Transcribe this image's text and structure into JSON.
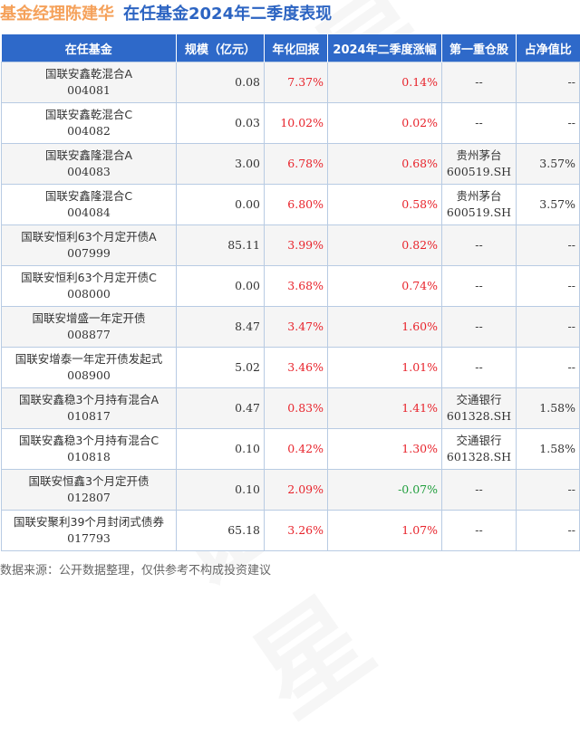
{
  "title": {
    "part1": "基金经理陈建华",
    "part2": "在任基金2024年二季度表现"
  },
  "colors": {
    "title_orange": "#f5a15a",
    "title_blue": "#2c64c2",
    "header_bg": "#2e69c9",
    "positive": "#e8242c",
    "negative": "#1f9e3c"
  },
  "table": {
    "headers": [
      "在任基金",
      "规模（亿元）",
      "年化回报",
      "2024年二季度涨幅",
      "第一重仓股",
      "占净值比"
    ],
    "rows": [
      {
        "name": "国联安鑫乾混合A",
        "code": "004081",
        "size": "0.08",
        "annual_return": "7.37%",
        "q2_change": "0.14%",
        "q2_sign": "red",
        "top_stock": "--",
        "top_stock_code": "",
        "ratio": "--"
      },
      {
        "name": "国联安鑫乾混合C",
        "code": "004082",
        "size": "0.03",
        "annual_return": "10.02%",
        "q2_change": "0.02%",
        "q2_sign": "red",
        "top_stock": "--",
        "top_stock_code": "",
        "ratio": "--"
      },
      {
        "name": "国联安鑫隆混合A",
        "code": "004083",
        "size": "3.00",
        "annual_return": "6.78%",
        "q2_change": "0.68%",
        "q2_sign": "red",
        "top_stock": "贵州茅台",
        "top_stock_code": "600519.SH",
        "ratio": "3.57%"
      },
      {
        "name": "国联安鑫隆混合C",
        "code": "004084",
        "size": "0.00",
        "annual_return": "6.80%",
        "q2_change": "0.58%",
        "q2_sign": "red",
        "top_stock": "贵州茅台",
        "top_stock_code": "600519.SH",
        "ratio": "3.57%"
      },
      {
        "name": "国联安恒利63个月定开债A",
        "code": "007999",
        "size": "85.11",
        "annual_return": "3.99%",
        "q2_change": "0.82%",
        "q2_sign": "red",
        "top_stock": "--",
        "top_stock_code": "",
        "ratio": "--"
      },
      {
        "name": "国联安恒利63个月定开债C",
        "code": "008000",
        "size": "0.00",
        "annual_return": "3.68%",
        "q2_change": "0.74%",
        "q2_sign": "red",
        "top_stock": "--",
        "top_stock_code": "",
        "ratio": "--"
      },
      {
        "name": "国联安增盛一年定开债",
        "code": "008877",
        "size": "8.47",
        "annual_return": "3.47%",
        "q2_change": "1.60%",
        "q2_sign": "red",
        "top_stock": "--",
        "top_stock_code": "",
        "ratio": "--"
      },
      {
        "name": "国联安增泰一年定开债发起式",
        "code": "008900",
        "size": "5.02",
        "annual_return": "3.46%",
        "q2_change": "1.01%",
        "q2_sign": "red",
        "top_stock": "--",
        "top_stock_code": "",
        "ratio": "--"
      },
      {
        "name": "国联安鑫稳3个月持有混合A",
        "code": "010817",
        "size": "0.47",
        "annual_return": "0.83%",
        "q2_change": "1.41%",
        "q2_sign": "red",
        "top_stock": "交通银行",
        "top_stock_code": "601328.SH",
        "ratio": "1.58%"
      },
      {
        "name": "国联安鑫稳3个月持有混合C",
        "code": "010818",
        "size": "0.10",
        "annual_return": "0.42%",
        "q2_change": "1.30%",
        "q2_sign": "red",
        "top_stock": "交通银行",
        "top_stock_code": "601328.SH",
        "ratio": "1.58%"
      },
      {
        "name": "国联安恒鑫3个月定开债",
        "code": "012807",
        "size": "0.10",
        "annual_return": "2.09%",
        "q2_change": "-0.07%",
        "q2_sign": "green",
        "top_stock": "--",
        "top_stock_code": "",
        "ratio": "--"
      },
      {
        "name": "国联安聚利39个月封闭式债券",
        "code": "017793",
        "size": "65.18",
        "annual_return": "3.26%",
        "q2_change": "1.07%",
        "q2_sign": "red",
        "top_stock": "--",
        "top_stock_code": "",
        "ratio": "--"
      }
    ]
  },
  "footer": {
    "source": "数据来源：公开数据整理，仅供参考不构成投资建议"
  },
  "watermark": {
    "text": "证券之星"
  }
}
